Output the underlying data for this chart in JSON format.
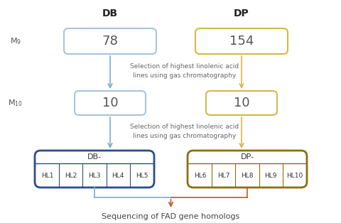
{
  "bg_color": "#ffffff",
  "db_color_light": "#a8c4df",
  "db_color_dark": "#2b4d8c",
  "dp_color_light": "#d4b84a",
  "dp_color_dark": "#8c6e10",
  "arrow_color_blue": "#7aadd4",
  "arrow_color_orange": "#c05820",
  "title_db": "DB",
  "title_dp": "DP",
  "label_m9": "M$_9$",
  "label_m10": "M$_{10}$",
  "val_db_m9": "78",
  "val_dp_m9": "154",
  "val_db_m10": "10",
  "val_dp_m10": "10",
  "selection_text1": "Selection of highest linolenic acid\nlines using gas chromatography",
  "selection_text2": "Selection of highest linolenic acid\nlines using gas chromatography",
  "db_group_label": "DB-",
  "dp_group_label": "DP-",
  "db_items": [
    "HL1",
    "HL2",
    "HL3",
    "HL4",
    "HL5"
  ],
  "dp_items": [
    "HL6",
    "HL7",
    "HL8",
    "HL9",
    "HL10"
  ],
  "final_text": "Sequencing of FAD gene homologs"
}
